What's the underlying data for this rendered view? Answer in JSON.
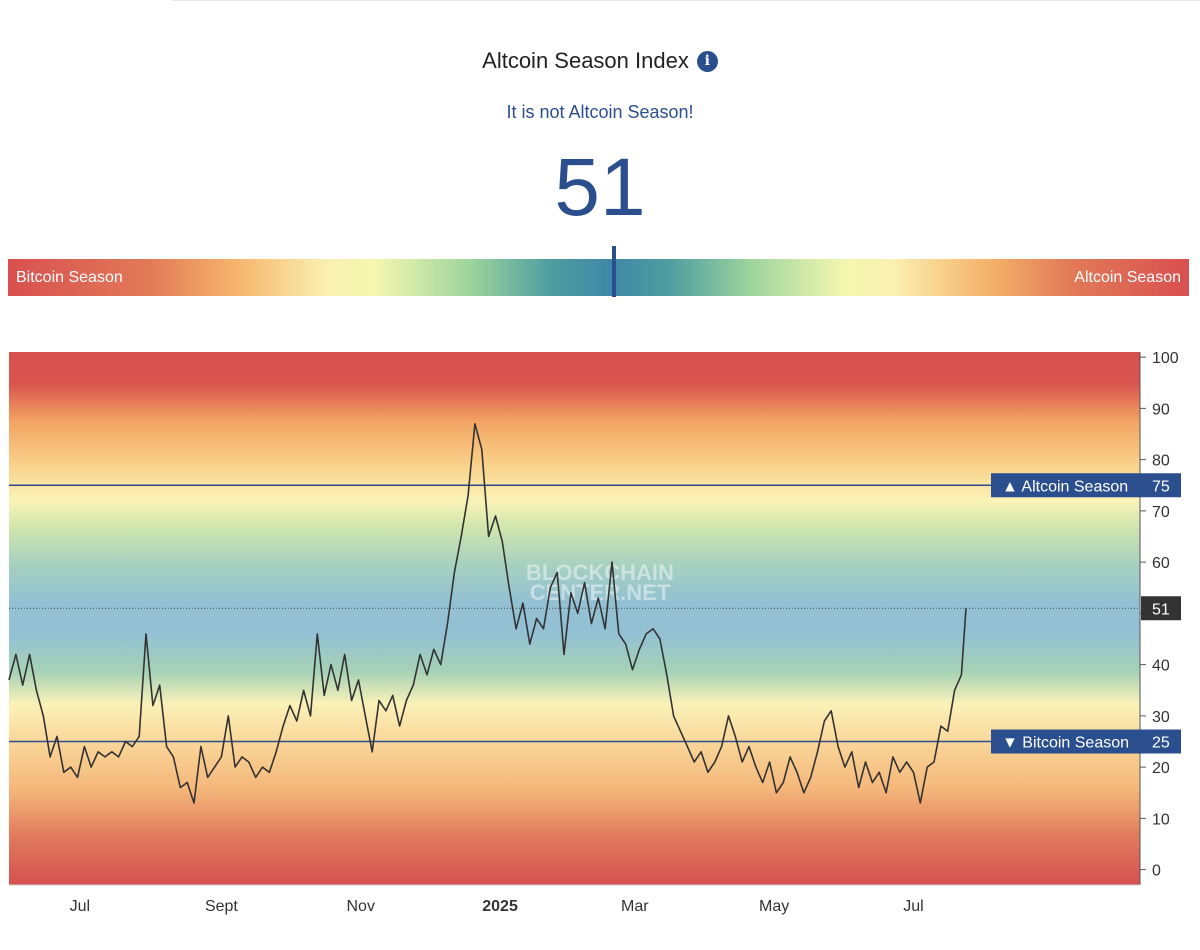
{
  "header": {
    "title": "Altcoin Season Index",
    "info_icon": "info-icon",
    "status": "It is not Altcoin Season!",
    "value": "51"
  },
  "scale": {
    "left_label": "Bitcoin Season",
    "right_label": "Altcoin Season",
    "value": 51,
    "range": [
      0,
      100
    ]
  },
  "colors": {
    "accent": "#2b4f8e",
    "bitcoin_red": "#d85050",
    "line": "#333333"
  },
  "chart_data": {
    "type": "line",
    "watermark": [
      "BLOCKCHAIN",
      "CENTER.NET"
    ],
    "ylim": [
      -3,
      101
    ],
    "y_ticks": [
      0,
      10,
      20,
      30,
      40,
      50,
      60,
      70,
      80,
      90,
      100
    ],
    "grid": false,
    "x_ticks": [
      {
        "label": "Jul",
        "date": "2024-07-01",
        "bold": false
      },
      {
        "label": "Sept",
        "date": "2024-09-01",
        "bold": false
      },
      {
        "label": "Nov",
        "date": "2024-11-01",
        "bold": false
      },
      {
        "label": "2025",
        "date": "2025-01-01",
        "bold": true
      },
      {
        "label": "Mar",
        "date": "2025-03-01",
        "bold": false
      },
      {
        "label": "May",
        "date": "2025-05-01",
        "bold": false
      },
      {
        "label": "Jul",
        "date": "2025-07-01",
        "bold": false
      }
    ],
    "thresholds": [
      {
        "label": "▲ Altcoin Season",
        "value": 75
      },
      {
        "label": "▼ Bitcoin Season",
        "value": 25
      }
    ],
    "current": {
      "value": 51,
      "label": "51"
    },
    "x_start": "2024-05-31",
    "x_end": "2025-07-20",
    "series": [
      {
        "points": [
          [
            "2024-05-31",
            37
          ],
          [
            "2024-06-03",
            42
          ],
          [
            "2024-06-06",
            36
          ],
          [
            "2024-06-09",
            42
          ],
          [
            "2024-06-12",
            35
          ],
          [
            "2024-06-15",
            30
          ],
          [
            "2024-06-18",
            22
          ],
          [
            "2024-06-21",
            26
          ],
          [
            "2024-06-24",
            19
          ],
          [
            "2024-06-27",
            20
          ],
          [
            "2024-06-30",
            18
          ],
          [
            "2024-07-03",
            24
          ],
          [
            "2024-07-06",
            20
          ],
          [
            "2024-07-09",
            23
          ],
          [
            "2024-07-12",
            22
          ],
          [
            "2024-07-15",
            23
          ],
          [
            "2024-07-18",
            22
          ],
          [
            "2024-07-21",
            25
          ],
          [
            "2024-07-24",
            24
          ],
          [
            "2024-07-27",
            26
          ],
          [
            "2024-07-30",
            46
          ],
          [
            "2024-08-02",
            32
          ],
          [
            "2024-08-05",
            36
          ],
          [
            "2024-08-08",
            24
          ],
          [
            "2024-08-11",
            22
          ],
          [
            "2024-08-14",
            16
          ],
          [
            "2024-08-17",
            17
          ],
          [
            "2024-08-20",
            13
          ],
          [
            "2024-08-23",
            24
          ],
          [
            "2024-08-26",
            18
          ],
          [
            "2024-08-29",
            20
          ],
          [
            "2024-09-01",
            22
          ],
          [
            "2024-09-04",
            30
          ],
          [
            "2024-09-07",
            20
          ],
          [
            "2024-09-10",
            22
          ],
          [
            "2024-09-13",
            21
          ],
          [
            "2024-09-16",
            18
          ],
          [
            "2024-09-19",
            20
          ],
          [
            "2024-09-22",
            19
          ],
          [
            "2024-09-25",
            23
          ],
          [
            "2024-09-28",
            28
          ],
          [
            "2024-10-01",
            32
          ],
          [
            "2024-10-04",
            29
          ],
          [
            "2024-10-07",
            35
          ],
          [
            "2024-10-10",
            30
          ],
          [
            "2024-10-13",
            46
          ],
          [
            "2024-10-16",
            34
          ],
          [
            "2024-10-19",
            40
          ],
          [
            "2024-10-22",
            35
          ],
          [
            "2024-10-25",
            42
          ],
          [
            "2024-10-28",
            33
          ],
          [
            "2024-10-31",
            37
          ],
          [
            "2024-11-03",
            30
          ],
          [
            "2024-11-06",
            23
          ],
          [
            "2024-11-09",
            33
          ],
          [
            "2024-11-12",
            31
          ],
          [
            "2024-11-15",
            34
          ],
          [
            "2024-11-18",
            28
          ],
          [
            "2024-11-21",
            33
          ],
          [
            "2024-11-24",
            36
          ],
          [
            "2024-11-27",
            42
          ],
          [
            "2024-11-30",
            38
          ],
          [
            "2024-12-03",
            43
          ],
          [
            "2024-12-06",
            40
          ],
          [
            "2024-12-09",
            48
          ],
          [
            "2024-12-12",
            58
          ],
          [
            "2024-12-15",
            65
          ],
          [
            "2024-12-18",
            73
          ],
          [
            "2024-12-21",
            87
          ],
          [
            "2024-12-24",
            82
          ],
          [
            "2024-12-27",
            65
          ],
          [
            "2024-12-30",
            69
          ],
          [
            "2025-01-02",
            64
          ],
          [
            "2025-01-05",
            55
          ],
          [
            "2025-01-08",
            47
          ],
          [
            "2025-01-11",
            52
          ],
          [
            "2025-01-14",
            44
          ],
          [
            "2025-01-17",
            49
          ],
          [
            "2025-01-20",
            47
          ],
          [
            "2025-01-23",
            55
          ],
          [
            "2025-01-26",
            58
          ],
          [
            "2025-01-29",
            42
          ],
          [
            "2025-02-01",
            54
          ],
          [
            "2025-02-04",
            50
          ],
          [
            "2025-02-07",
            56
          ],
          [
            "2025-02-10",
            48
          ],
          [
            "2025-02-13",
            53
          ],
          [
            "2025-02-16",
            47
          ],
          [
            "2025-02-19",
            60
          ],
          [
            "2025-02-22",
            46
          ],
          [
            "2025-02-25",
            44
          ],
          [
            "2025-02-28",
            39
          ],
          [
            "2025-03-03",
            43
          ],
          [
            "2025-03-06",
            46
          ],
          [
            "2025-03-09",
            47
          ],
          [
            "2025-03-12",
            45
          ],
          [
            "2025-03-15",
            38
          ],
          [
            "2025-03-18",
            30
          ],
          [
            "2025-03-21",
            27
          ],
          [
            "2025-03-24",
            24
          ],
          [
            "2025-03-27",
            21
          ],
          [
            "2025-03-30",
            23
          ],
          [
            "2025-04-02",
            19
          ],
          [
            "2025-04-05",
            21
          ],
          [
            "2025-04-08",
            24
          ],
          [
            "2025-04-11",
            30
          ],
          [
            "2025-04-14",
            26
          ],
          [
            "2025-04-17",
            21
          ],
          [
            "2025-04-20",
            24
          ],
          [
            "2025-04-23",
            20
          ],
          [
            "2025-04-26",
            17
          ],
          [
            "2025-04-29",
            21
          ],
          [
            "2025-05-02",
            15
          ],
          [
            "2025-05-05",
            17
          ],
          [
            "2025-05-08",
            22
          ],
          [
            "2025-05-11",
            19
          ],
          [
            "2025-05-14",
            15
          ],
          [
            "2025-05-17",
            18
          ],
          [
            "2025-05-20",
            23
          ],
          [
            "2025-05-23",
            29
          ],
          [
            "2025-05-26",
            31
          ],
          [
            "2025-05-29",
            24
          ],
          [
            "2025-06-01",
            20
          ],
          [
            "2025-06-04",
            23
          ],
          [
            "2025-06-07",
            16
          ],
          [
            "2025-06-10",
            21
          ],
          [
            "2025-06-13",
            17
          ],
          [
            "2025-06-16",
            19
          ],
          [
            "2025-06-19",
            15
          ],
          [
            "2025-06-22",
            22
          ],
          [
            "2025-06-25",
            19
          ],
          [
            "2025-06-28",
            21
          ],
          [
            "2025-07-01",
            19
          ],
          [
            "2025-07-04",
            13
          ],
          [
            "2025-07-07",
            20
          ],
          [
            "2025-07-10",
            21
          ],
          [
            "2025-07-13",
            28
          ],
          [
            "2025-07-16",
            27
          ],
          [
            "2025-07-19",
            35
          ],
          [
            "2025-07-22",
            38
          ],
          [
            "2025-07-24",
            51
          ]
        ]
      }
    ]
  }
}
